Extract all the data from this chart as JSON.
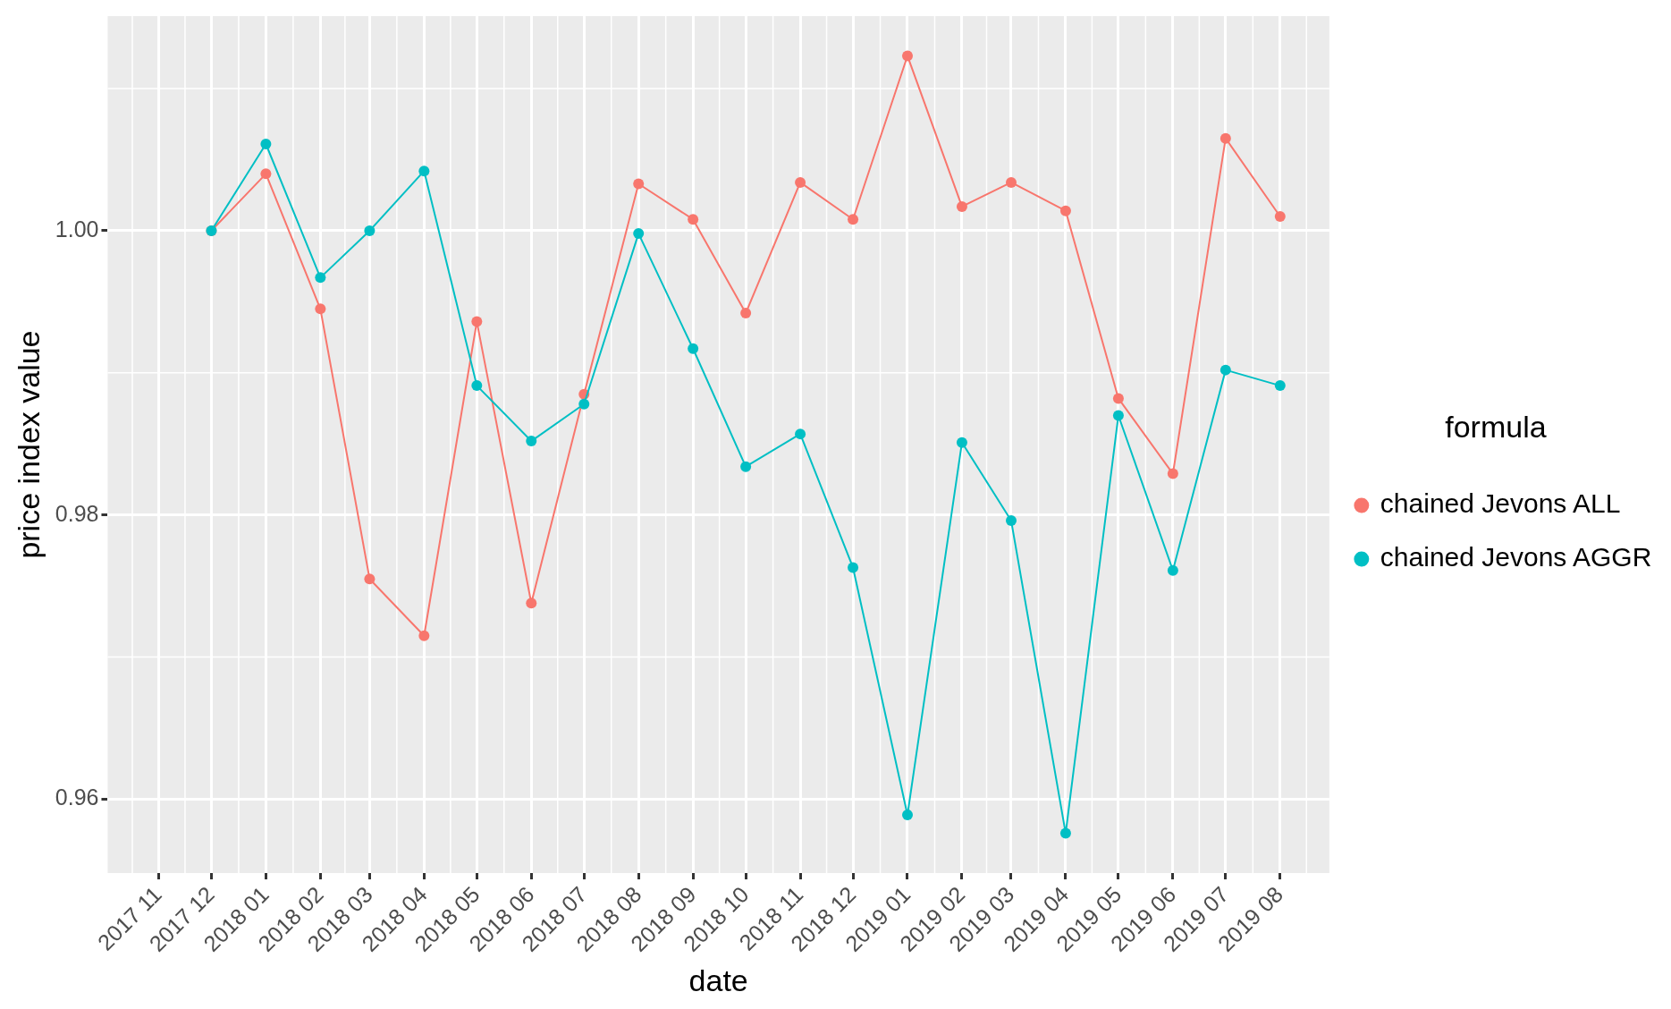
{
  "chart_data": {
    "type": "line",
    "xlabel": "date",
    "ylabel": "price index value",
    "legend_title": "formula",
    "x": [
      "2017-12",
      "2018-01",
      "2018-02",
      "2018-03",
      "2018-04",
      "2018-05",
      "2018-06",
      "2018-07",
      "2018-08",
      "2018-09",
      "2018-10",
      "2018-11",
      "2018-12",
      "2019-01",
      "2019-02",
      "2019-03",
      "2019-04",
      "2019-05",
      "2019-06",
      "2019-07",
      "2019-08"
    ],
    "series": [
      {
        "name": "chained Jevons ALL",
        "color": "#f8766d",
        "values": [
          1.0,
          1.004,
          0.9945,
          0.9755,
          0.9715,
          0.9936,
          0.9738,
          0.9885,
          1.0033,
          1.0008,
          0.9942,
          1.0034,
          1.0008,
          1.0123,
          1.0017,
          1.0034,
          1.0014,
          0.9882,
          0.9829,
          1.0065,
          1.001
        ]
      },
      {
        "name": "chained Jevons AGGR",
        "color": "#00bfc4",
        "values": [
          1.0,
          1.0061,
          0.9967,
          1.0,
          1.0042,
          0.9891,
          0.9852,
          0.9878,
          0.9998,
          0.9917,
          0.9834,
          0.9857,
          0.9763,
          0.9589,
          0.9851,
          0.9796,
          0.9576,
          0.987,
          0.9761,
          0.9902,
          0.9891
        ]
      }
    ],
    "xlim": [
      "2017-10-03",
      "2019-08-29"
    ],
    "xticks": [
      {
        "value": "2017-11",
        "label": "2017 11"
      },
      {
        "value": "2017-12",
        "label": "2017 12"
      },
      {
        "value": "2018-01",
        "label": "2018 01"
      },
      {
        "value": "2018-02",
        "label": "2018 02"
      },
      {
        "value": "2018-03",
        "label": "2018 03"
      },
      {
        "value": "2018-04",
        "label": "2018 04"
      },
      {
        "value": "2018-05",
        "label": "2018 05"
      },
      {
        "value": "2018-06",
        "label": "2018 06"
      },
      {
        "value": "2018-07",
        "label": "2018 07"
      },
      {
        "value": "2018-08",
        "label": "2018 08"
      },
      {
        "value": "2018-09",
        "label": "2018 09"
      },
      {
        "value": "2018-10",
        "label": "2018 10"
      },
      {
        "value": "2018-11",
        "label": "2018 11"
      },
      {
        "value": "2018-12",
        "label": "2018 12"
      },
      {
        "value": "2019-01",
        "label": "2019 01"
      },
      {
        "value": "2019-02",
        "label": "2019 02"
      },
      {
        "value": "2019-03",
        "label": "2019 03"
      },
      {
        "value": "2019-04",
        "label": "2019 04"
      },
      {
        "value": "2019-05",
        "label": "2019 05"
      },
      {
        "value": "2019-06",
        "label": "2019 06"
      },
      {
        "value": "2019-07",
        "label": "2019 07"
      },
      {
        "value": "2019-08",
        "label": "2019 08"
      }
    ],
    "ylim": [
      0.9548,
      1.0151
    ],
    "yticks": [
      0.96,
      0.98,
      {
        "value": 1,
        "label": "1.00"
      }
    ],
    "grid": true,
    "legend": "right",
    "marker": "circle",
    "line_style": "solid"
  }
}
